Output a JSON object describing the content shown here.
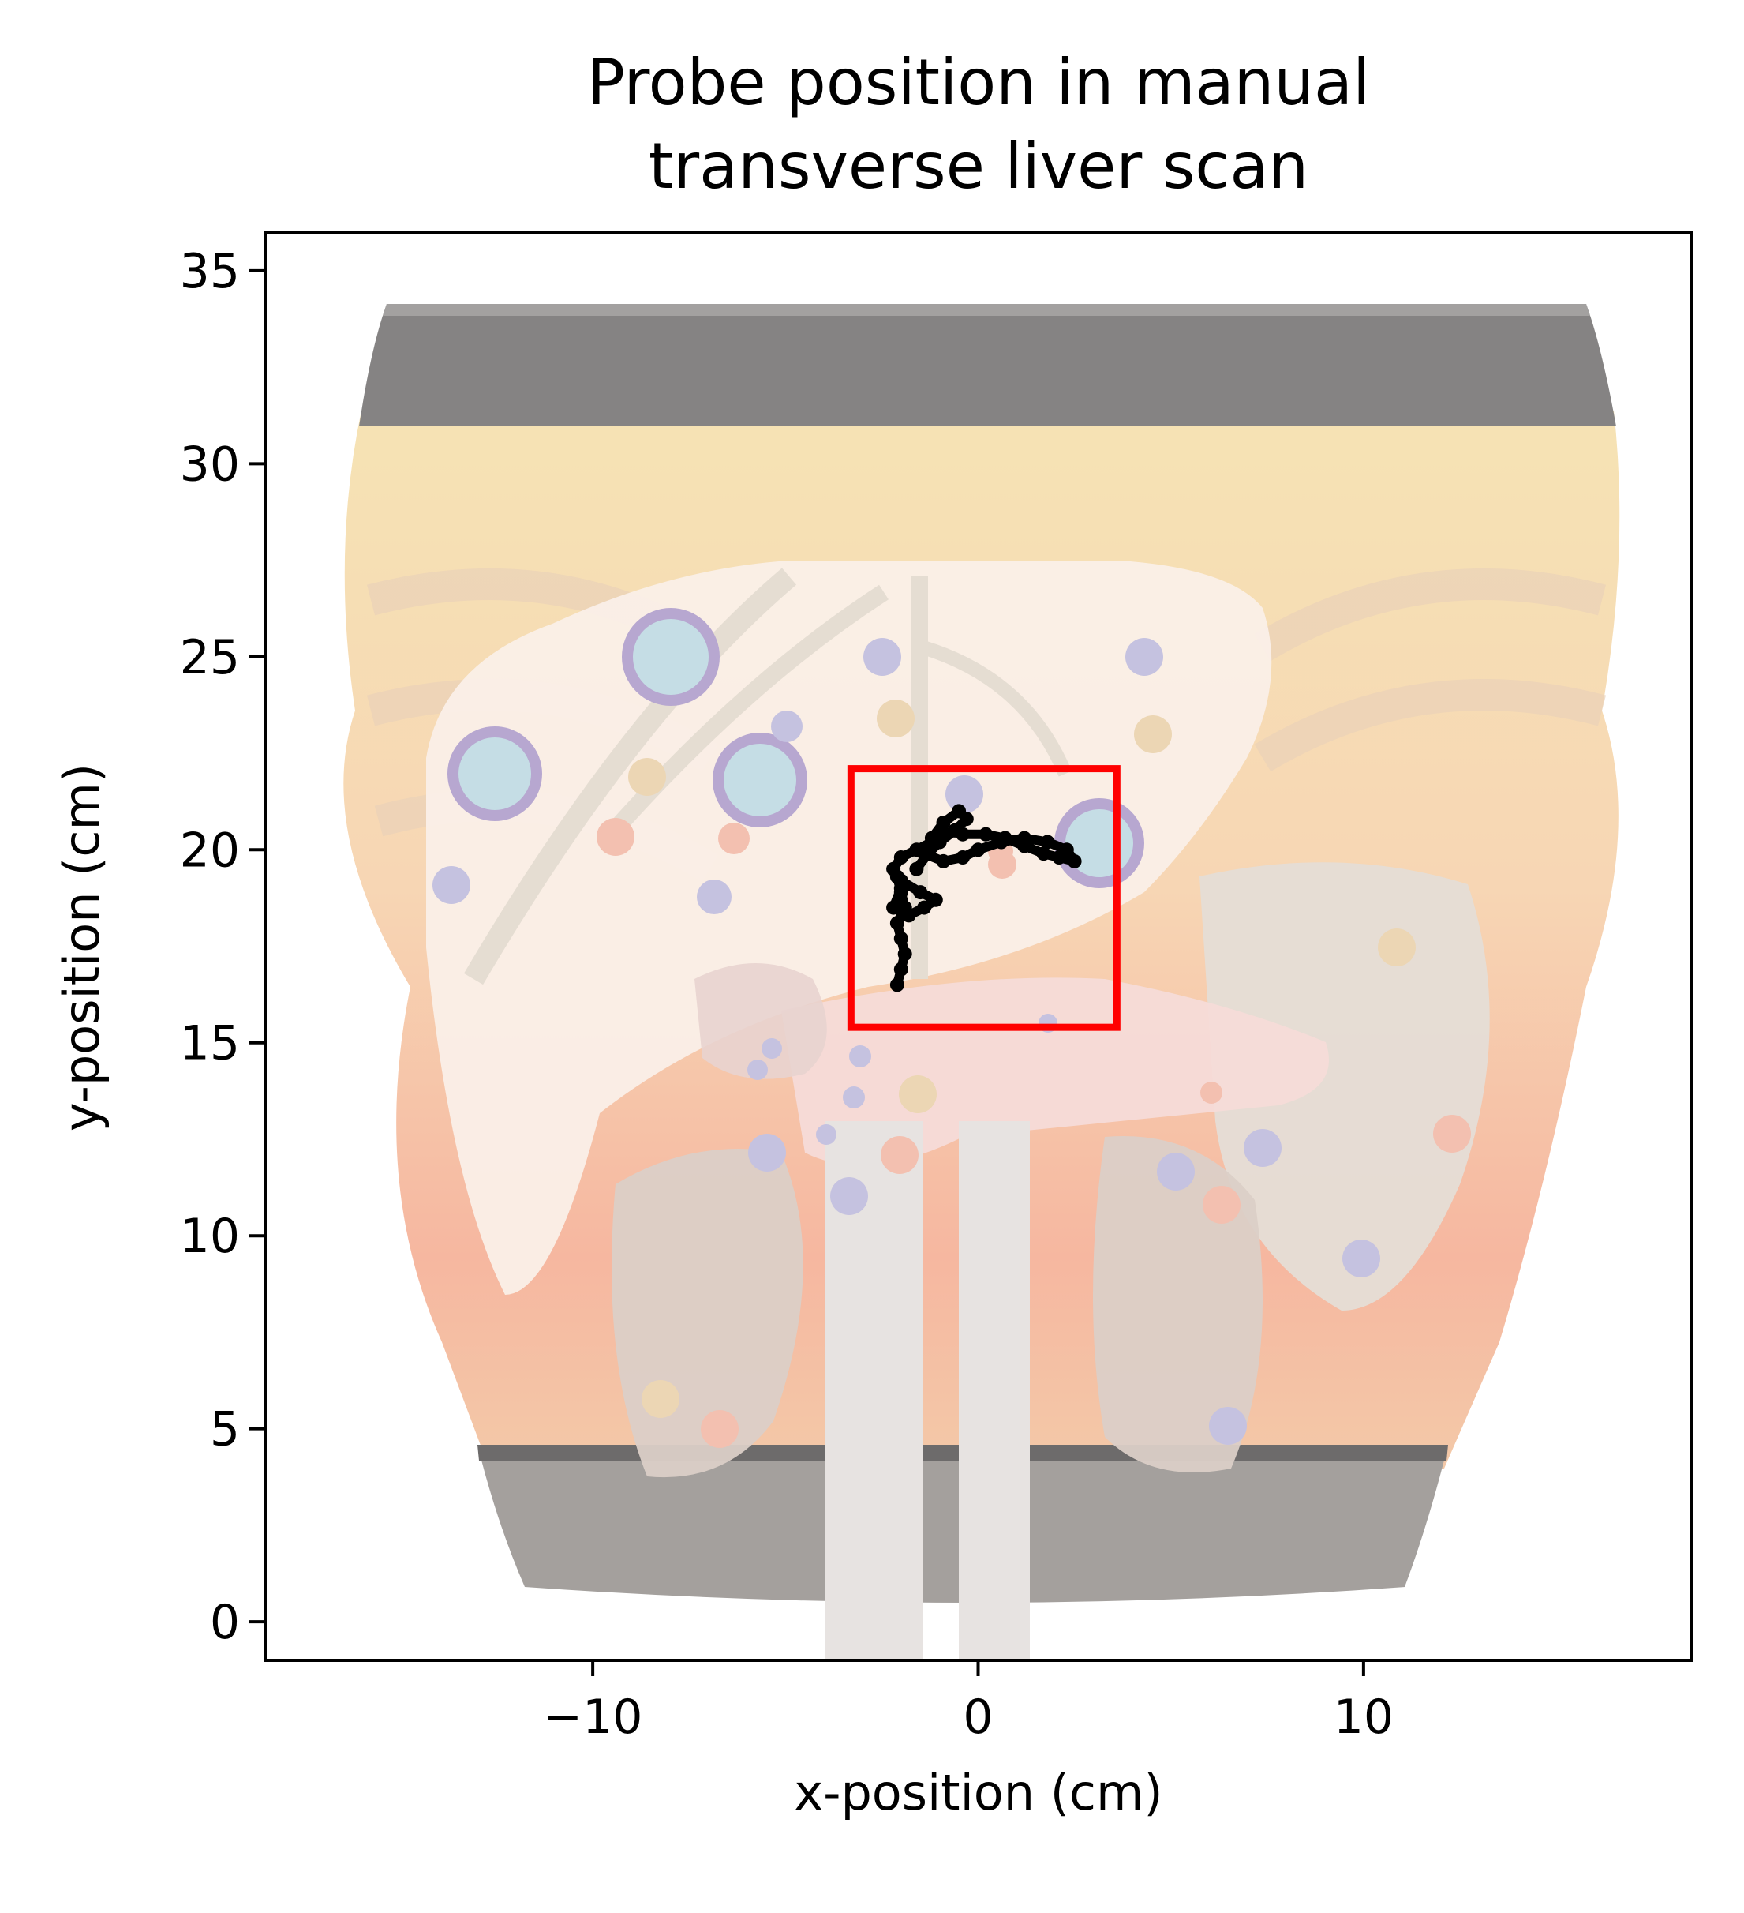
{
  "chart_data": {
    "type": "scatter",
    "title_lines": [
      "Probe position in manual",
      "transverse liver scan"
    ],
    "xlabel": "x-position (cm)",
    "ylabel": "y-position (cm)",
    "xlim": [
      -18.5,
      18.5
    ],
    "ylim": [
      -1,
      36
    ],
    "xticks": [
      -10,
      0,
      10
    ],
    "xtick_labels": [
      "−10",
      "0",
      "10"
    ],
    "yticks": [
      0,
      5,
      10,
      15,
      20,
      25,
      30,
      35
    ],
    "ytick_labels": [
      "0",
      "5",
      "10",
      "15",
      "20",
      "25",
      "30",
      "35"
    ],
    "grid": false,
    "background": "phantom torso photo with liver anatomy overlay",
    "box": {
      "x0": -3.3,
      "x1": 3.6,
      "y0": 15.4,
      "y1": 22.1,
      "color": "#ff0000"
    },
    "series": [
      {
        "color": "#000000",
        "x": [
          -2.1,
          -2.0,
          -1.9,
          -2.0,
          -2.1,
          -1.9,
          -2.0,
          -2.1,
          -2.0,
          -2.2,
          -1.8,
          -1.4,
          -1.1,
          -1.5,
          -2.0,
          -2.2,
          -2.0,
          -1.6,
          -1.2,
          -0.9,
          -0.6,
          -0.4,
          0.2,
          0.7,
          1.2,
          1.7,
          2.1,
          2.5,
          2.3,
          1.8,
          1.2,
          0.6,
          0.0,
          -0.4,
          -0.9,
          -1.4,
          -1.2,
          -0.9,
          -0.5,
          -0.3,
          -0.6,
          -1.0,
          -1.3,
          -1.6
        ],
        "y": [
          16.5,
          16.9,
          17.3,
          17.7,
          18.1,
          18.5,
          18.9,
          19.3,
          19.0,
          18.5,
          18.3,
          18.5,
          18.7,
          18.9,
          19.2,
          19.5,
          19.8,
          20.0,
          20.2,
          20.4,
          20.5,
          20.4,
          20.4,
          20.3,
          20.1,
          19.9,
          19.8,
          19.7,
          20.0,
          20.2,
          20.3,
          20.2,
          20.0,
          19.8,
          19.7,
          19.9,
          20.3,
          20.7,
          21.0,
          20.8,
          20.5,
          20.2,
          19.9,
          19.5
        ]
      }
    ]
  }
}
